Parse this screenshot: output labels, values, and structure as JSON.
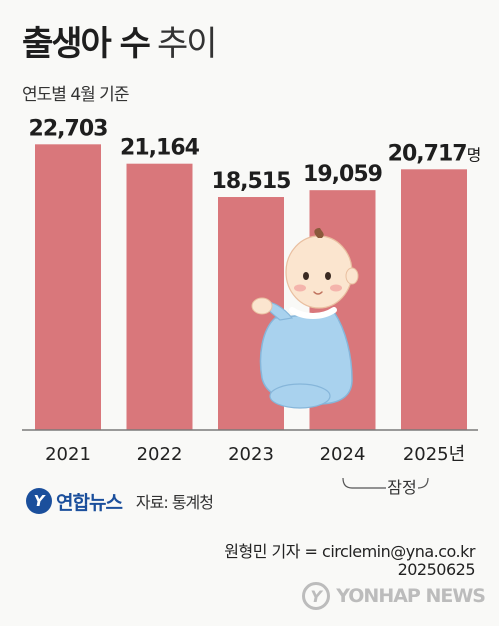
{
  "title_bold": "출생아 수",
  "title_light": "추이",
  "subtitle": "연도별 4월 기준",
  "source_logo": "연합뉴스",
  "source": "자료: 통계청",
  "reporter": "원형민 기자 = circlemin@yna.co.kr",
  "date": "20250625",
  "watermark": "YONHAP NEWS",
  "colors": {
    "bar": "#d9777b",
    "baby_suit": "#a9d2ee",
    "skin": "#fbe5cf"
  },
  "illustration": "baby-icon",
  "chart_data": {
    "type": "bar",
    "title": "출생아 수 추이",
    "subtitle": "연도별 4월 기준",
    "categories": [
      "2021",
      "2022",
      "2023",
      "2024",
      "2025년"
    ],
    "values": [
      22703,
      21164,
      18515,
      19059,
      20717
    ],
    "value_labels": [
      "22,703",
      "21,164",
      "18,515",
      "19,059",
      "20,717"
    ],
    "unit": "명",
    "ylim": [
      0,
      24000
    ],
    "grid": false,
    "annotation": "잠정"
  }
}
